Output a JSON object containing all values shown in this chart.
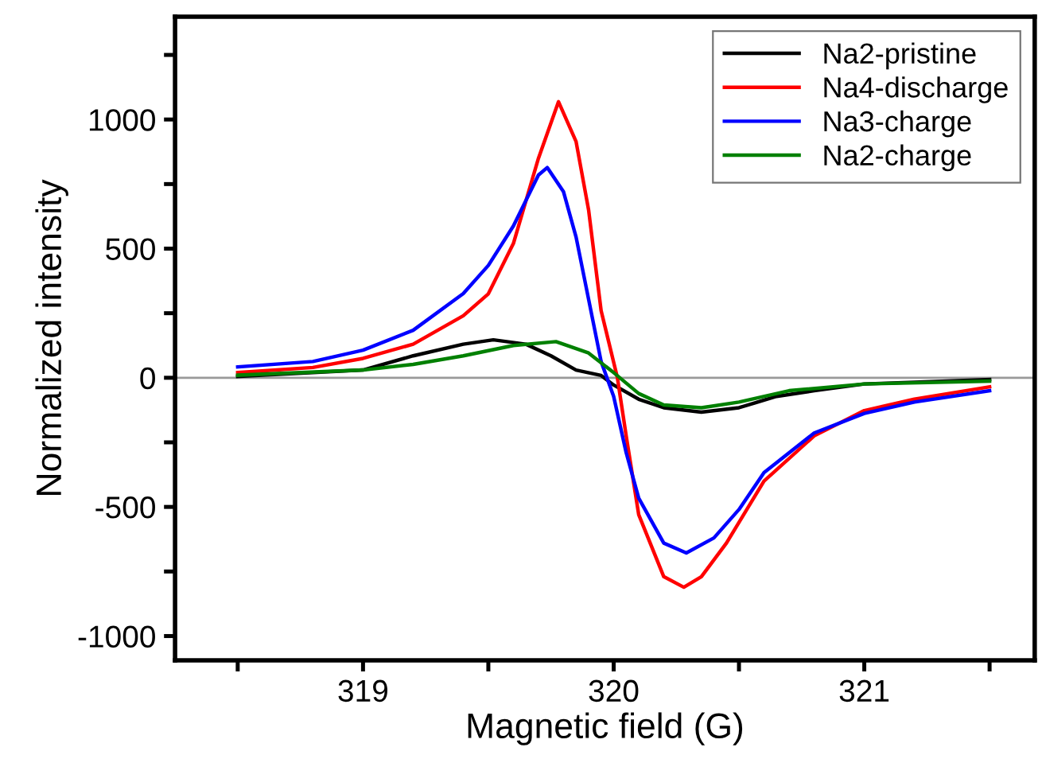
{
  "chart_data": {
    "type": "line",
    "xlabel": "Magnetic field (G)",
    "ylabel": "Normalized intensity",
    "xlim": [
      318.25,
      321.68
    ],
    "ylim": [
      -1094,
      1398
    ],
    "xticks": [
      {
        "value": 318.5,
        "label": null
      },
      319,
      {
        "value": 319.5,
        "label": null
      },
      320,
      {
        "value": 320.5,
        "label": null
      },
      321,
      {
        "value": 321.5,
        "label": null
      }
    ],
    "yticks": [
      -1000,
      {
        "value": -750,
        "label": null
      },
      -500,
      {
        "value": -250,
        "label": null
      },
      0,
      {
        "value": 250,
        "label": null
      },
      500,
      {
        "value": 750,
        "label": null
      },
      1000,
      {
        "value": 1250,
        "label": null
      }
    ],
    "legend": "top right",
    "grid": false,
    "marker": "none",
    "line_style": "solid",
    "ref_lines": [
      {
        "axis": "y",
        "value": 0,
        "color": "#999999"
      }
    ],
    "series": [
      {
        "name": "Na2-pristine",
        "color": "#000000",
        "x": [
          318.5,
          318.8,
          319.0,
          319.2,
          319.4,
          319.52,
          319.65,
          319.75,
          319.85,
          319.95,
          320.0,
          320.1,
          320.2,
          320.35,
          320.5,
          320.65,
          320.8,
          321.0,
          321.2,
          321.5
        ],
        "values": [
          5,
          20,
          30,
          85,
          130,
          147,
          130,
          85,
          30,
          9,
          -28,
          -83,
          -116,
          -133,
          -116,
          -72,
          -50,
          -24,
          -17,
          -7
        ]
      },
      {
        "name": "Na4-discharge",
        "color": "#ff0000",
        "x": [
          318.5,
          318.8,
          319.0,
          319.2,
          319.4,
          319.5,
          319.6,
          319.7,
          319.78,
          319.85,
          319.9,
          319.95,
          320.015,
          320.05,
          320.1,
          320.2,
          320.28,
          320.35,
          320.45,
          320.6,
          320.8,
          321.0,
          321.2,
          321.5
        ],
        "values": [
          20,
          40,
          75,
          130,
          240,
          325,
          520,
          850,
          1069,
          915,
          650,
          260,
          0,
          -225,
          -530,
          -770,
          -811,
          -770,
          -640,
          -400,
          -225,
          -127,
          -83,
          -35
        ]
      },
      {
        "name": "Na3-charge",
        "color": "#0000ff",
        "x": [
          318.5,
          318.8,
          319.0,
          319.2,
          319.4,
          319.5,
          319.6,
          319.7,
          319.735,
          319.8,
          319.85,
          319.9,
          319.95,
          320.0,
          320.05,
          320.1,
          320.2,
          320.29,
          320.4,
          320.5,
          320.6,
          320.8,
          321.0,
          321.2,
          321.5
        ],
        "values": [
          42,
          63,
          107,
          184,
          326,
          435,
          588,
          785,
          814,
          720,
          545,
          304,
          63,
          -72,
          -290,
          -466,
          -640,
          -678,
          -620,
          -510,
          -367,
          -214,
          -138,
          -94,
          -50
        ]
      },
      {
        "name": "Na2-charge",
        "color": "#008000",
        "x": [
          318.5,
          319.0,
          319.2,
          319.4,
          319.6,
          319.77,
          319.9,
          320.0,
          320.1,
          320.2,
          320.35,
          320.5,
          320.7,
          321.0,
          321.5
        ],
        "values": [
          10,
          30,
          52,
          85,
          125,
          140,
          96,
          20,
          -61,
          -105,
          -116,
          -94,
          -50,
          -24,
          -13
        ]
      }
    ]
  }
}
